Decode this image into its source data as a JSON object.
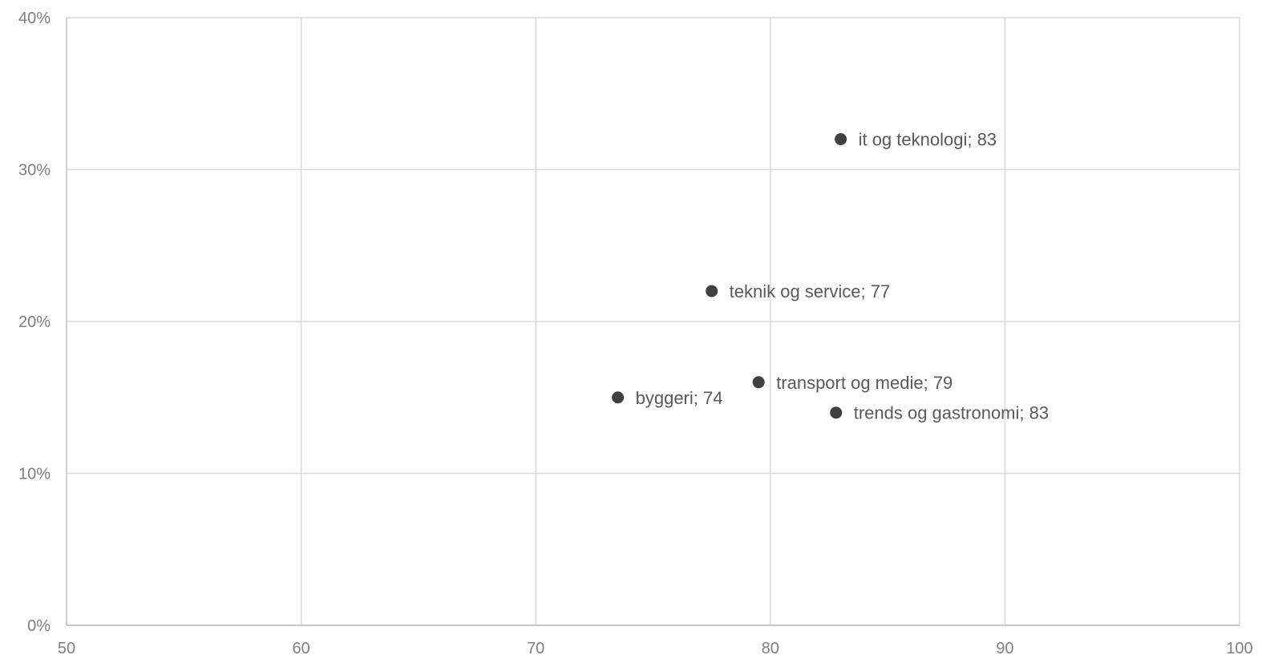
{
  "chart_data": {
    "type": "scatter",
    "title": "",
    "xlabel": "",
    "ylabel": "",
    "xlim": [
      50,
      100
    ],
    "ylim": [
      0,
      0.4
    ],
    "x_ticks": [
      50,
      60,
      70,
      80,
      90,
      100
    ],
    "x_tick_labels": [
      "50",
      "60",
      "70",
      "80",
      "90",
      "100"
    ],
    "y_ticks": [
      0,
      0.1,
      0.2,
      0.3,
      0.4
    ],
    "y_tick_labels": [
      "0%",
      "10%",
      "20%",
      "30%",
      "40%"
    ],
    "grid": true,
    "legend": false,
    "marker_color": "#404040",
    "points": [
      {
        "x": 83.0,
        "y": 0.32,
        "label": "it og teknologi; 83"
      },
      {
        "x": 77.5,
        "y": 0.22,
        "label": "teknik og service; 77"
      },
      {
        "x": 79.5,
        "y": 0.16,
        "label": "transport og medie; 79"
      },
      {
        "x": 73.5,
        "y": 0.15,
        "label": "byggeri; 74"
      },
      {
        "x": 82.8,
        "y": 0.14,
        "label": "trends og gastronomi; 83"
      }
    ]
  }
}
